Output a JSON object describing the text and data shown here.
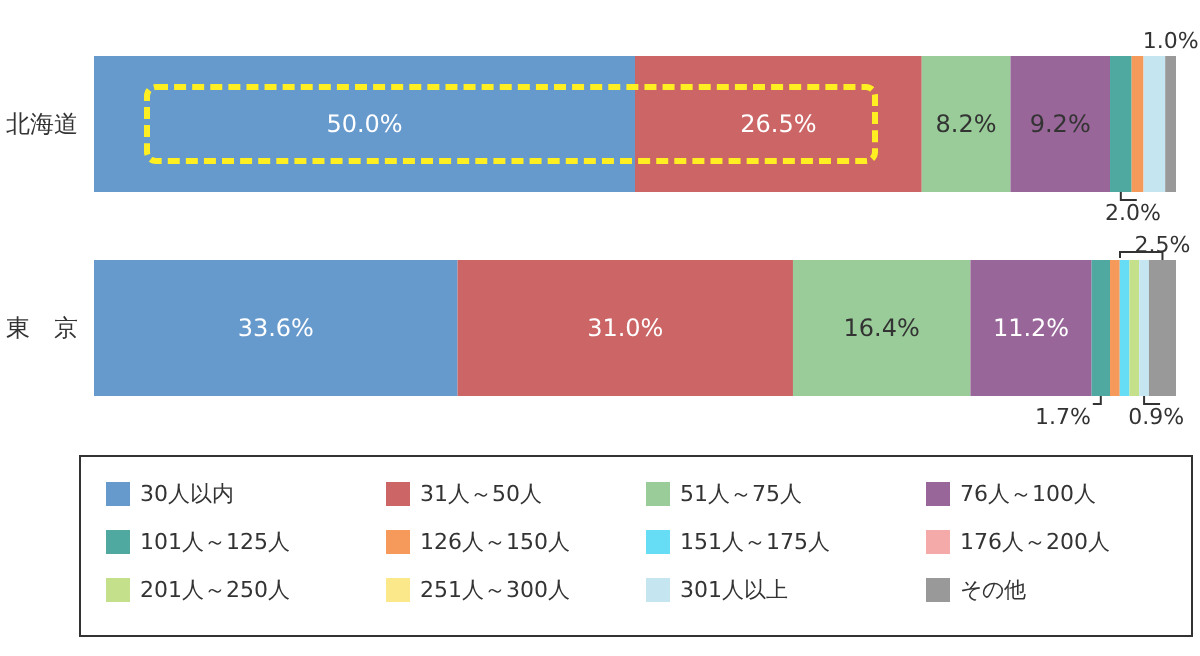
{
  "chart_data": {
    "type": "bar",
    "orientation": "horizontal",
    "stacked": true,
    "xlim": [
      0,
      100
    ],
    "tick_labels": "y",
    "categories": [
      "北海道",
      "東　京"
    ],
    "legend": "bottom",
    "series": [
      {
        "name": "30人以内",
        "color": "#6699cc",
        "values": [
          50.0,
          33.6
        ],
        "value_labels": [
          "50.0%",
          "33.6%"
        ]
      },
      {
        "name": "31人～50人",
        "color": "#cc6666",
        "values": [
          26.5,
          31.0
        ],
        "value_labels": [
          "26.5%",
          "31.0%"
        ]
      },
      {
        "name": "51人～75人",
        "color": "#99cc99",
        "values": [
          8.2,
          16.4
        ],
        "value_labels": [
          "8.2%",
          "16.4%"
        ]
      },
      {
        "name": "76人～100人",
        "color": "#996699",
        "values": [
          9.2,
          11.2
        ],
        "value_labels": [
          "9.2%",
          "11.2%"
        ]
      },
      {
        "name": "101人～125人",
        "color": "#4fa9a0",
        "values": [
          2.0,
          1.7
        ],
        "value_labels": [
          "2.0%",
          "1.7%"
        ]
      },
      {
        "name": "126人～150人",
        "color": "#f59a5a",
        "values": [
          1.1,
          0.9
        ],
        "value_labels": [
          null,
          null
        ]
      },
      {
        "name": "151人～175人",
        "color": "#66ddf5",
        "values": [
          0,
          0.9
        ],
        "value_labels": [
          null,
          null
        ]
      },
      {
        "name": "176人～200人",
        "color": "#f5aaaa",
        "values": [
          0,
          0
        ],
        "value_labels": [
          null,
          null
        ]
      },
      {
        "name": "201人～250人",
        "color": "#c5e08a",
        "values": [
          0,
          0.9
        ],
        "value_labels": [
          null,
          null
        ]
      },
      {
        "name": "251人～300人",
        "color": "#fbe88a",
        "values": [
          0,
          0
        ],
        "value_labels": [
          null,
          null
        ]
      },
      {
        "name": "301人以上",
        "color": "#c5e6f0",
        "values": [
          2.0,
          0.9
        ],
        "value_labels": [
          null,
          "0.9%"
        ]
      },
      {
        "name": "その他",
        "color": "#999999",
        "values": [
          1.0,
          2.5
        ],
        "value_labels": [
          "1.0%",
          "2.5%"
        ]
      }
    ]
  }
}
